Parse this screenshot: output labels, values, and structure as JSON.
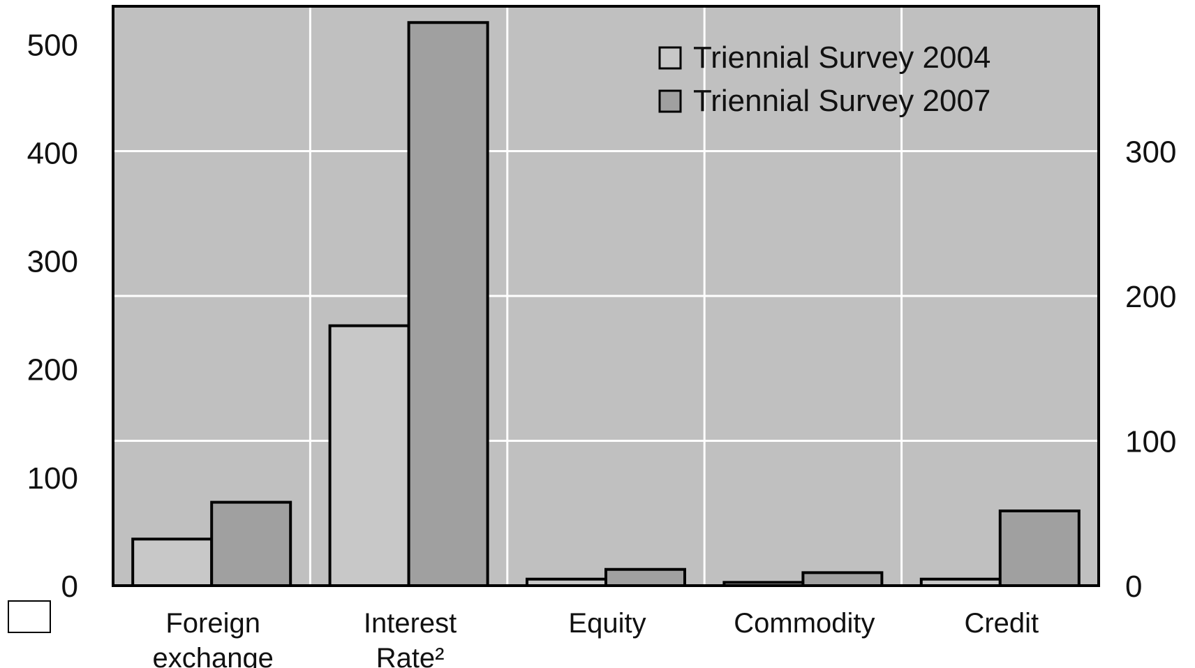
{
  "chart_data": {
    "type": "bar",
    "categories": [
      [
        "Foreign",
        "exchange"
      ],
      [
        "Interest",
        "Rate²"
      ],
      [
        "Equity"
      ],
      [
        "Commodity"
      ],
      [
        "Credit"
      ]
    ],
    "series": [
      {
        "name": "Triennial Survey 2004",
        "values": [
          43,
          240,
          6,
          3,
          6
        ],
        "color": "#c8c8c8"
      },
      {
        "name": "Triennial Survey 2007",
        "values": [
          77,
          520,
          15,
          12,
          69
        ],
        "color": "#a0a0a0"
      }
    ],
    "y_left": {
      "ticks": [
        "0",
        "100",
        "200",
        "300",
        "400",
        "500"
      ],
      "values": [
        0,
        100,
        200,
        300,
        400,
        500
      ],
      "ylim": [
        0,
        535
      ]
    },
    "y_right": {
      "ticks": [
        "0",
        "100",
        "200",
        "300"
      ],
      "values": [
        0,
        100,
        200,
        300
      ],
      "ylim": [
        0,
        400
      ]
    },
    "grid": true,
    "legend_position": "top-right",
    "plot_background": "#c0c0c0",
    "title": "",
    "xlabel": "",
    "ylabel": ""
  }
}
